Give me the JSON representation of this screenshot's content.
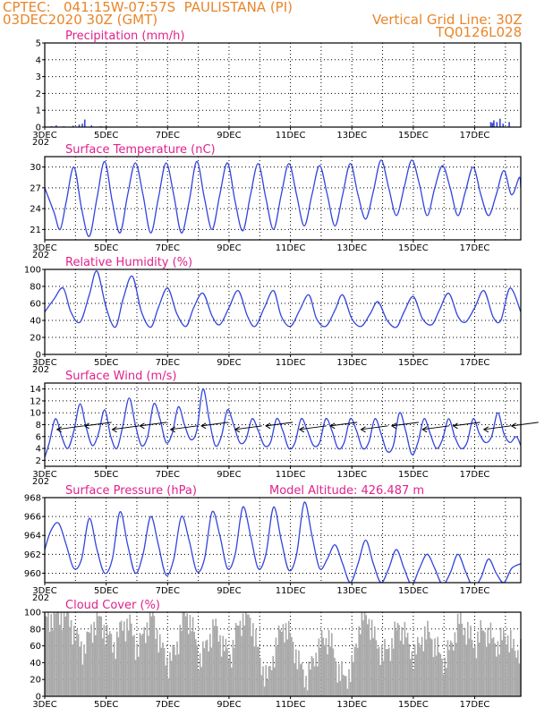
{
  "header": {
    "line1": "CPTEC:   041:15W-07:57S  PAULISTANA (PI)",
    "line2": "03DEC2020 30Z (GMT)",
    "right1": "Vertical Grid Line: 30Z",
    "right2": "TQ0126L028"
  },
  "x_axis": {
    "tick_labels": [
      "3DEC",
      "5DEC",
      "7DEC",
      "9DEC",
      "11DEC",
      "13DEC",
      "15DEC",
      "17DEC"
    ],
    "range_days": [
      0,
      15.5
    ],
    "clipped_label": "202"
  },
  "colors": {
    "line": "#3344dd",
    "title": "#e0228c",
    "header": "#e8862a",
    "cloud": "#a9a9a9",
    "grid": "#000000"
  },
  "chart_data": [
    {
      "type": "bar",
      "title": "Precipitation (mm/h)",
      "ylim": [
        0,
        5
      ],
      "yticks": [
        0,
        1,
        2,
        3,
        4,
        5
      ],
      "x_days": [
        0.2,
        0.35,
        0.6,
        0.9,
        1.1,
        1.2,
        1.28,
        1.5,
        1.8,
        2.0,
        2.5,
        3.0,
        3.5,
        4.0,
        5.0,
        6.0,
        7.0,
        8.0,
        9.0,
        10.0,
        11.0,
        12.0,
        13.0,
        14.0,
        14.5,
        14.55,
        14.6,
        14.7,
        14.8,
        14.9,
        15.1
      ],
      "values": [
        0.05,
        0.1,
        0.05,
        0.08,
        0.15,
        0.2,
        0.45,
        0.1,
        0.05,
        0.05,
        0.03,
        0.03,
        0.03,
        0.03,
        0.03,
        0.03,
        0.03,
        0.03,
        0.03,
        0.03,
        0.03,
        0.03,
        0.03,
        0.03,
        0.3,
        0.25,
        0.4,
        0.3,
        0.5,
        0.2,
        0.3
      ]
    },
    {
      "type": "line",
      "title": "Surface Temperature (nC)",
      "ylim": [
        19.5,
        31.5
      ],
      "yticks": [
        21,
        24,
        27,
        30
      ],
      "x_days": [
        0.0,
        0.3,
        0.5,
        0.7,
        0.95,
        1.2,
        1.45,
        1.7,
        1.95,
        2.2,
        2.45,
        2.7,
        2.95,
        3.2,
        3.45,
        3.7,
        3.95,
        4.2,
        4.45,
        4.7,
        4.95,
        5.2,
        5.45,
        5.7,
        5.95,
        6.2,
        6.45,
        6.7,
        6.95,
        7.2,
        7.45,
        7.7,
        7.95,
        8.2,
        8.45,
        8.7,
        8.95,
        9.2,
        9.45,
        9.7,
        9.95,
        10.2,
        10.45,
        10.7,
        10.95,
        11.2,
        11.45,
        11.7,
        11.95,
        12.2,
        12.45,
        12.7,
        12.95,
        13.2,
        13.45,
        13.7,
        13.95,
        14.2,
        14.45,
        14.7,
        14.95,
        15.2,
        15.45,
        15.5
      ],
      "values": [
        27.0,
        23.5,
        21.0,
        25.0,
        30.0,
        24.0,
        20.0,
        25.5,
        30.8,
        25.0,
        20.5,
        26.0,
        30.6,
        26.0,
        20.5,
        25.5,
        30.6,
        26.0,
        20.5,
        25.0,
        30.8,
        25.5,
        21.0,
        26.0,
        30.6,
        25.0,
        20.8,
        26.0,
        30.5,
        25.5,
        21.0,
        26.0,
        30.5,
        26.0,
        21.5,
        26.0,
        30.2,
        26.0,
        21.5,
        26.0,
        30.5,
        26.0,
        22.5,
        26.5,
        31.0,
        27.0,
        23.0,
        27.0,
        31.0,
        27.5,
        23.0,
        27.0,
        30.2,
        27.0,
        23.0,
        26.5,
        30.0,
        26.0,
        23.0,
        26.0,
        29.5,
        26.0,
        28.5,
        27.0
      ]
    },
    {
      "type": "line",
      "title": "Relative Humidity (%)",
      "ylim": [
        0,
        100
      ],
      "yticks": [
        0,
        20,
        40,
        60,
        80,
        100
      ],
      "x_days": [
        0.0,
        0.3,
        0.6,
        0.85,
        1.15,
        1.45,
        1.7,
        2.0,
        2.3,
        2.55,
        2.85,
        3.15,
        3.45,
        3.7,
        4.0,
        4.3,
        4.6,
        4.85,
        5.15,
        5.45,
        5.7,
        6.0,
        6.3,
        6.6,
        6.85,
        7.15,
        7.45,
        7.7,
        8.0,
        8.3,
        8.6,
        8.85,
        9.15,
        9.45,
        9.7,
        10.0,
        10.3,
        10.6,
        10.85,
        11.15,
        11.45,
        11.7,
        12.0,
        12.3,
        12.6,
        12.85,
        13.15,
        13.45,
        13.7,
        14.0,
        14.3,
        14.6,
        14.85,
        15.15,
        15.5
      ],
      "values": [
        50,
        65,
        78,
        50,
        38,
        70,
        98,
        55,
        32,
        65,
        92,
        50,
        32,
        55,
        78,
        48,
        33,
        55,
        72,
        45,
        35,
        55,
        75,
        45,
        33,
        55,
        75,
        45,
        33,
        52,
        70,
        42,
        33,
        52,
        70,
        42,
        33,
        48,
        62,
        40,
        32,
        50,
        68,
        42,
        35,
        52,
        72,
        45,
        38,
        55,
        75,
        44,
        40,
        78,
        50
      ]
    },
    {
      "type": "line",
      "title": "Surface Wind (m/s)",
      "ylim": [
        1,
        15
      ],
      "yticks": [
        2,
        4,
        6,
        8,
        10,
        12,
        14
      ],
      "x_days": [
        0.0,
        0.15,
        0.35,
        0.55,
        0.75,
        0.95,
        1.15,
        1.35,
        1.55,
        1.75,
        1.95,
        2.15,
        2.35,
        2.55,
        2.75,
        2.95,
        3.15,
        3.35,
        3.55,
        3.75,
        3.95,
        4.15,
        4.35,
        4.55,
        4.75,
        4.95,
        5.15,
        5.35,
        5.55,
        5.75,
        5.95,
        6.15,
        6.35,
        6.55,
        6.75,
        6.95,
        7.15,
        7.35,
        7.55,
        7.75,
        7.95,
        8.15,
        8.35,
        8.55,
        8.75,
        8.95,
        9.15,
        9.35,
        9.55,
        9.75,
        9.95,
        10.15,
        10.35,
        10.55,
        10.75,
        10.95,
        11.15,
        11.35,
        11.55,
        11.75,
        11.95,
        12.15,
        12.35,
        12.55,
        12.75,
        12.95,
        13.15,
        13.35,
        13.55,
        13.75,
        13.95,
        14.15,
        14.35,
        14.55,
        14.75,
        14.95,
        15.15,
        15.35,
        15.5
      ],
      "values": [
        2.5,
        5.0,
        9.0,
        6.0,
        4.0,
        7.0,
        11.5,
        7.5,
        4.5,
        6.5,
        10.5,
        6.0,
        4.0,
        8.0,
        12.5,
        8.0,
        4.5,
        6.0,
        11.5,
        9.0,
        5.0,
        6.5,
        11.0,
        8.0,
        5.5,
        7.0,
        14.0,
        9.0,
        4.5,
        6.0,
        10.5,
        8.0,
        5.0,
        5.5,
        9.0,
        7.0,
        4.5,
        5.0,
        9.0,
        7.0,
        4.0,
        5.0,
        9.0,
        7.0,
        4.5,
        5.0,
        9.0,
        7.0,
        4.0,
        5.0,
        9.0,
        7.0,
        4.0,
        5.0,
        9.0,
        6.5,
        3.5,
        4.5,
        10.0,
        7.0,
        3.0,
        5.0,
        9.0,
        6.5,
        4.0,
        5.5,
        9.0,
        6.0,
        4.0,
        5.0,
        9.0,
        6.5,
        5.0,
        6.0,
        10.0,
        6.5,
        5.0,
        6.0,
        4.5
      ],
      "barbs": [
        0.4,
        1.3,
        2.2,
        3.1,
        4.1,
        5.1,
        6.2,
        7.2,
        8.3,
        9.3,
        10.3,
        11.3,
        12.3,
        13.3,
        14.3,
        15.2
      ]
    },
    {
      "type": "line",
      "title": "Surface Pressure (hPa)",
      "annotation": "Model Altitude: 426.487 m",
      "ylim": [
        959,
        968
      ],
      "yticks": [
        960,
        962,
        964,
        966,
        968
      ],
      "x_days": [
        0.0,
        0.2,
        0.45,
        0.7,
        0.95,
        1.2,
        1.45,
        1.7,
        1.95,
        2.2,
        2.45,
        2.7,
        2.95,
        3.2,
        3.45,
        3.7,
        3.95,
        4.2,
        4.45,
        4.7,
        4.95,
        5.2,
        5.45,
        5.7,
        5.95,
        6.2,
        6.45,
        6.7,
        6.95,
        7.2,
        7.45,
        7.7,
        7.95,
        8.2,
        8.45,
        8.7,
        8.95,
        9.2,
        9.45,
        9.7,
        9.95,
        10.2,
        10.45,
        10.7,
        10.95,
        11.2,
        11.45,
        11.7,
        11.95,
        12.2,
        12.45,
        12.7,
        12.95,
        13.2,
        13.45,
        13.7,
        13.95,
        14.2,
        14.45,
        14.7,
        14.95,
        15.2,
        15.5
      ],
      "values": [
        962.5,
        964.5,
        965.3,
        963.0,
        960.5,
        961.5,
        965.8,
        962.5,
        960.0,
        961.5,
        966.5,
        963.0,
        960.0,
        962.0,
        966.0,
        963.0,
        959.8,
        961.5,
        966.0,
        963.5,
        960.2,
        961.5,
        966.5,
        964.0,
        960.5,
        962.0,
        967.0,
        964.0,
        960.5,
        962.0,
        967.0,
        963.5,
        960.3,
        962.0,
        967.5,
        964.0,
        960.5,
        961.5,
        963.0,
        961.0,
        959.0,
        961.0,
        963.5,
        961.0,
        959.0,
        960.5,
        962.5,
        960.5,
        958.8,
        960.5,
        962.0,
        960.5,
        958.8,
        960.0,
        962.0,
        960.2,
        958.5,
        959.5,
        961.5,
        960.0,
        959.0,
        960.5,
        961.0
      ]
    },
    {
      "type": "bar",
      "title": "Cloud Cover (%)",
      "ylim": [
        0,
        100
      ],
      "yticks": [
        0,
        20,
        40,
        60,
        80,
        100
      ],
      "x_days": [
        0.0,
        0.25,
        0.5,
        0.75,
        1.0,
        1.25,
        1.5,
        1.75,
        2.0,
        2.25,
        2.5,
        2.75,
        3.0,
        3.25,
        3.5,
        3.75,
        4.0,
        4.25,
        4.5,
        4.75,
        5.0,
        5.25,
        5.5,
        5.75,
        6.0,
        6.25,
        6.5,
        6.75,
        7.0,
        7.25,
        7.5,
        7.75,
        8.0,
        8.25,
        8.5,
        8.75,
        9.0,
        9.25,
        9.5,
        9.75,
        10.0,
        10.25,
        10.5,
        10.75,
        11.0,
        11.25,
        11.5,
        11.75,
        12.0,
        12.25,
        12.5,
        12.75,
        13.0,
        13.25,
        13.5,
        13.75,
        14.0,
        14.25,
        14.5,
        14.75,
        15.0,
        15.25
      ],
      "values": [
        90,
        95,
        98,
        95,
        70,
        55,
        80,
        92,
        75,
        60,
        85,
        85,
        55,
        80,
        95,
        60,
        40,
        55,
        98,
        90,
        45,
        60,
        85,
        65,
        45,
        80,
        98,
        85,
        40,
        20,
        60,
        85,
        70,
        40,
        20,
        45,
        65,
        70,
        35,
        20,
        35,
        90,
        95,
        65,
        50,
        60,
        85,
        70,
        45,
        70,
        75,
        55,
        40,
        65,
        90,
        75,
        60,
        80,
        70,
        60,
        75,
        55
      ]
    }
  ]
}
